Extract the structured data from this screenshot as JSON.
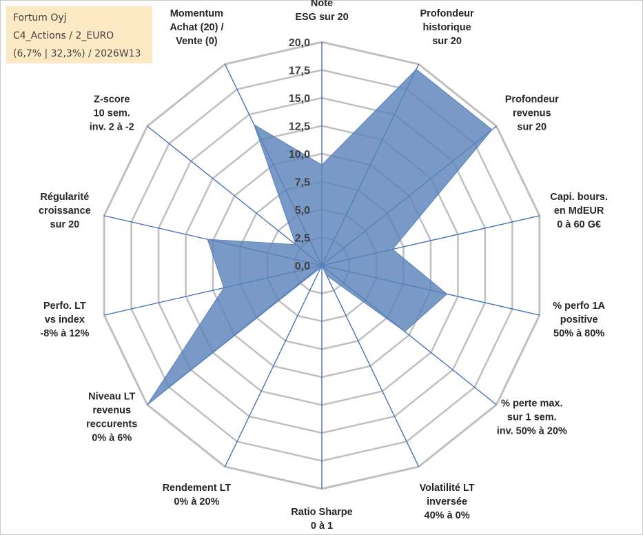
{
  "header": {
    "company": "Fortum Oyj",
    "category": "C4_Actions / 2_EURO",
    "stats": "(6,7% | 32,3%) / 2026W13"
  },
  "colors": {
    "fill": "#5b83b9",
    "axis": "#3a68b7",
    "grid": "#bfbfbf"
  },
  "chart_data": {
    "type": "radar",
    "title": "",
    "rmin": 0,
    "rmax": 20,
    "ticks": [
      "0,0",
      "2,5",
      "5,0",
      "7,5",
      "10,0",
      "12,5",
      "15,0",
      "17,5",
      "20,0"
    ],
    "axes": [
      [
        "Note",
        "ESG sur 20"
      ],
      [
        "Profondeur",
        "historique",
        "sur 20"
      ],
      [
        "Profondeur",
        "revenus",
        "sur 20"
      ],
      [
        "Capi. bours.",
        "en MdEUR",
        "0 à 60 G€"
      ],
      [
        "% perfo 1A",
        "positive",
        "50% à 80%"
      ],
      [
        "% perte max.",
        "sur 1 sem.",
        "inv. 50% à 20%"
      ],
      [
        "Volatilité LT",
        "inversée",
        "40% à 0%"
      ],
      [
        "Ratio Sharpe",
        "0 à 1"
      ],
      [
        "Rendement LT",
        "0% à 20%"
      ],
      [
        "Niveau LT",
        "revenus",
        "reccurents",
        "0% à 6%"
      ],
      [
        "Perfo. LT",
        "vs index",
        "-8% à 12%"
      ],
      [
        "Régularité",
        "croissance",
        "sur 20"
      ],
      [
        "Z-score",
        "10 sem.",
        "inv. 2 à -2"
      ],
      [
        "Momentum",
        "Achat (20) /",
        "Vente (0)"
      ]
    ],
    "series": [
      {
        "name": "Fortum Oyj",
        "values": [
          9.0,
          19.5,
          19.5,
          6.5,
          11.5,
          9.5,
          1.0,
          0.0,
          0.2,
          20.0,
          9.0,
          10.5,
          3.0,
          14.0
        ]
      }
    ]
  }
}
